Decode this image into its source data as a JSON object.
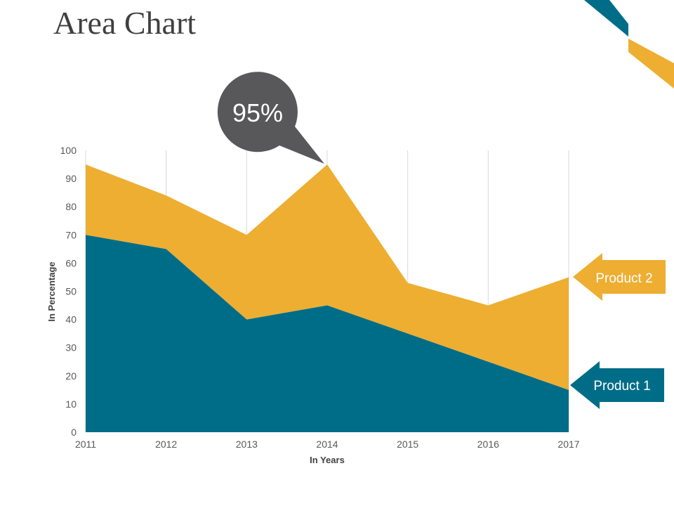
{
  "page": {
    "title": "Area Chart"
  },
  "callout": {
    "text": "95%",
    "color": "#58585a"
  },
  "chart_data": {
    "type": "area",
    "stacked": true,
    "x": [
      "2011",
      "2012",
      "2013",
      "2014",
      "2015",
      "2016",
      "2017"
    ],
    "series": [
      {
        "name": "Product 1",
        "color": "#006d88",
        "values": [
          70,
          65,
          40,
          45,
          35,
          25,
          15
        ]
      },
      {
        "name": "Product 2",
        "color": "#edae32",
        "values": [
          25,
          19,
          30,
          50,
          18,
          20,
          40
        ]
      }
    ],
    "xlabel": "In Years",
    "ylabel": "In Percentage",
    "ylim": [
      0,
      100
    ],
    "yticks": [
      "0",
      "10",
      "20",
      "30",
      "40",
      "50",
      "60",
      "70",
      "80",
      "90",
      "100"
    ],
    "grid": {
      "vertical": true,
      "horizontal": false,
      "color": "#d9d9d9"
    }
  },
  "decor": {
    "stripe_colors": [
      "#006d88",
      "#edae32"
    ]
  }
}
